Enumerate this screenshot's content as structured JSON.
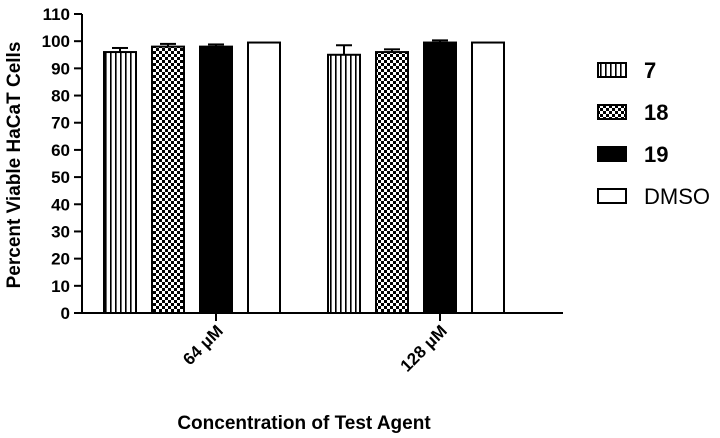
{
  "chart_data": {
    "type": "bar",
    "xlabel": "Concentration of Test Agent",
    "ylabel": "Percent Viable HaCaT  Cells",
    "ylim": [
      0,
      110
    ],
    "yticks": [
      0,
      10,
      20,
      30,
      40,
      50,
      60,
      70,
      80,
      90,
      100,
      110
    ],
    "categories": [
      "64 μM",
      "128 μM"
    ],
    "series": [
      {
        "name": "7",
        "values": [
          96,
          95
        ],
        "errors": [
          1.5,
          3.5
        ],
        "pattern": "vertical-stripes"
      },
      {
        "name": "18",
        "values": [
          98,
          96
        ],
        "errors": [
          1.0,
          1.0
        ],
        "pattern": "checker"
      },
      {
        "name": "19",
        "values": [
          98,
          99.5
        ],
        "errors": [
          0.8,
          0.8
        ],
        "pattern": "solid-black"
      },
      {
        "name": "DMSO",
        "values": [
          99.5,
          99.5
        ],
        "errors": [
          0,
          0
        ],
        "pattern": "white"
      }
    ],
    "legend_position": "right",
    "grid": false
  }
}
